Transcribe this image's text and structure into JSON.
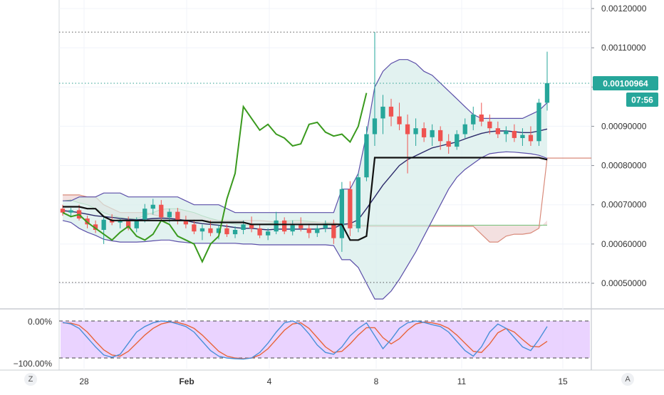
{
  "corner_buttons": {
    "left": "Z",
    "right": "A"
  },
  "colors": {
    "up": "#26a69a",
    "down": "#ef5350",
    "bb": "#5b4ea8",
    "bb_fill": "#d6ece9",
    "lagging": "#3a9a1e",
    "baseline": "#111111",
    "span_red": "#d98a7a",
    "osc_bg": "#e5c8ff",
    "osc_k": "#4a90d9",
    "osc_d": "#e8643a",
    "last_price_bg": "#26a69a",
    "dotted": "#2a9d8f"
  },
  "chart_data": [
    {
      "type": "candlestick",
      "title": "",
      "y_ticks": [
        "0.00120000",
        "0.00110000",
        "0.00100000",
        "0.00090000",
        "0.00080000",
        "0.00070000",
        "0.00060000",
        "0.00050000"
      ],
      "ylim": [
        0.00044,
        0.00127
      ],
      "x_ticks": [
        "28",
        "Feb",
        "4",
        "8",
        "11",
        "15"
      ],
      "horizontal_levels": [
        0.00114,
        0.0010096,
        0.000502
      ],
      "last_price_label": "0.00100964",
      "countdown_label": "07:56",
      "baseline_level_right": 0.000819,
      "candles_ohlc": [
        [
          0.00069,
          0.0007,
          0.000672,
          0.00068
        ],
        [
          0.00068,
          0.000692,
          0.000668,
          0.000686
        ],
        [
          0.000686,
          0.0007,
          0.00066,
          0.000665
        ],
        [
          0.000665,
          0.000672,
          0.00064,
          0.00065
        ],
        [
          0.00065,
          0.00066,
          0.000628,
          0.000636
        ],
        [
          0.000636,
          0.000668,
          0.0006,
          0.000662
        ],
        [
          0.000662,
          0.000676,
          0.000648,
          0.000655
        ],
        [
          0.000655,
          0.000665,
          0.00064,
          0.000658
        ],
        [
          0.000658,
          0.00067,
          0.000635,
          0.00064
        ],
        [
          0.00064,
          0.000668,
          0.00063,
          0.000662
        ],
        [
          0.000662,
          0.000702,
          0.000655,
          0.00069
        ],
        [
          0.00069,
          0.000715,
          0.000675,
          0.0007
        ],
        [
          0.0007,
          0.000712,
          0.00066,
          0.000668
        ],
        [
          0.000668,
          0.00069,
          0.000655,
          0.000682
        ],
        [
          0.000682,
          0.000692,
          0.00065,
          0.000658
        ],
        [
          0.000658,
          0.000672,
          0.00064,
          0.00065
        ],
        [
          0.00065,
          0.000662,
          0.000625,
          0.000632
        ],
        [
          0.000632,
          0.00065,
          0.00061,
          0.00064
        ],
        [
          0.00064,
          0.00066,
          0.00062,
          0.000628
        ],
        [
          0.000628,
          0.000648,
          0.000612,
          0.00064
        ],
        [
          0.00064,
          0.00065,
          0.000618,
          0.000625
        ],
        [
          0.000625,
          0.000645,
          0.000615,
          0.000636
        ],
        [
          0.000636,
          0.00066,
          0.000625,
          0.00065
        ],
        [
          0.00065,
          0.00067,
          0.00063,
          0.00064
        ],
        [
          0.00064,
          0.00065,
          0.000615,
          0.000622
        ],
        [
          0.000622,
          0.00064,
          0.00061,
          0.000632
        ],
        [
          0.000632,
          0.000682,
          0.000625,
          0.00066
        ],
        [
          0.00066,
          0.000668,
          0.000625,
          0.000632
        ],
        [
          0.000632,
          0.00066,
          0.000622,
          0.000648
        ],
        [
          0.000648,
          0.000668,
          0.000632,
          0.00064
        ],
        [
          0.00064,
          0.000652,
          0.000615,
          0.000628
        ],
        [
          0.000628,
          0.000648,
          0.000618,
          0.00064
        ],
        [
          0.00064,
          0.00066,
          0.00063,
          0.000652
        ],
        [
          0.000652,
          0.000662,
          0.0006,
          0.000615
        ],
        [
          0.000615,
          0.000758,
          0.00058,
          0.00074
        ],
        [
          0.00074,
          0.00076,
          0.00062,
          0.00064
        ],
        [
          0.00064,
          0.00078,
          0.00063,
          0.00077
        ],
        [
          0.00077,
          0.0009,
          0.00076,
          0.00088
        ],
        [
          0.00088,
          0.00114,
          0.00085,
          0.00092
        ],
        [
          0.00092,
          0.00098,
          0.00088,
          0.00095
        ],
        [
          0.00095,
          0.00097,
          0.0009,
          0.000925
        ],
        [
          0.000925,
          0.00096,
          0.00089,
          0.000905
        ],
        [
          0.000905,
          0.00093,
          0.00078,
          0.00088
        ],
        [
          0.00088,
          0.00092,
          0.00085,
          0.000895
        ],
        [
          0.000895,
          0.00091,
          0.00086,
          0.000872
        ],
        [
          0.000872,
          0.000905,
          0.00085,
          0.00089
        ],
        [
          0.00089,
          0.0009,
          0.00084,
          0.000862
        ],
        [
          0.000862,
          0.00088,
          0.00083,
          0.000848
        ],
        [
          0.000848,
          0.00089,
          0.00084,
          0.00088
        ],
        [
          0.00088,
          0.00092,
          0.00087,
          0.000905
        ],
        [
          0.000905,
          0.00095,
          0.00089,
          0.00093
        ],
        [
          0.00093,
          0.00096,
          0.0009,
          0.000912
        ],
        [
          0.000912,
          0.00093,
          0.00088,
          0.000895
        ],
        [
          0.000895,
          0.000912,
          0.00087,
          0.00088
        ],
        [
          0.00088,
          0.0009,
          0.00086,
          0.000888
        ],
        [
          0.000888,
          0.000905,
          0.00086,
          0.00087
        ],
        [
          0.00087,
          0.000895,
          0.00085,
          0.000878
        ],
        [
          0.000878,
          0.0009,
          0.00085,
          0.000862
        ],
        [
          0.000862,
          0.00097,
          0.00085,
          0.00096
        ],
        [
          0.00096,
          0.00109,
          0.00094,
          0.00101
        ]
      ],
      "bollinger_upper": [
        0.00071,
        0.00071,
        0.00072,
        0.00072,
        0.00072,
        0.00073,
        0.00073,
        0.00073,
        0.00072,
        0.00072,
        0.00072,
        0.00072,
        0.00072,
        0.00072,
        0.00072,
        0.00071,
        0.0007,
        0.0007,
        0.0007,
        0.0007,
        0.00069,
        0.00068,
        0.00068,
        0.00068,
        0.00068,
        0.00068,
        0.00068,
        0.00068,
        0.00068,
        0.00068,
        0.00068,
        0.00068,
        0.00068,
        0.00068,
        0.00074,
        0.00074,
        0.00078,
        0.00088,
        0.001,
        0.00104,
        0.00106,
        0.00107,
        0.00107,
        0.00106,
        0.00104,
        0.00103,
        0.00101,
        0.00099,
        0.00097,
        0.00095,
        0.00093,
        0.00092,
        0.00092,
        0.00092,
        0.00092,
        0.00092,
        0.00092,
        0.00093,
        0.00094,
        0.00096
      ],
      "bollinger_middle": [
        0.000685,
        0.000683,
        0.00068,
        0.000676,
        0.000672,
        0.00067,
        0.000668,
        0.000665,
        0.000663,
        0.000662,
        0.000663,
        0.000665,
        0.000666,
        0.000665,
        0.000663,
        0.00066,
        0.000655,
        0.000652,
        0.00065,
        0.000648,
        0.000645,
        0.000642,
        0.00064,
        0.00064,
        0.000638,
        0.000636,
        0.000638,
        0.000638,
        0.000638,
        0.000638,
        0.000638,
        0.000638,
        0.00064,
        0.00064,
        0.00065,
        0.000652,
        0.000662,
        0.00069,
        0.00072,
        0.00075,
        0.000775,
        0.0008,
        0.000815,
        0.000825,
        0.000835,
        0.000845,
        0.00085,
        0.000855,
        0.00086,
        0.000868,
        0.000875,
        0.000882,
        0.000886,
        0.000888,
        0.000888,
        0.000886,
        0.000884,
        0.000884,
        0.000888,
        0.000893
      ],
      "bollinger_lower": [
        0.00066,
        0.000655,
        0.00064,
        0.00063,
        0.000622,
        0.000612,
        0.000608,
        0.000605,
        0.000605,
        0.000605,
        0.000606,
        0.000608,
        0.00061,
        0.00061,
        0.000606,
        0.000604,
        0.000602,
        0.000602,
        0.000602,
        0.000602,
        0.000602,
        0.000602,
        0.0006,
        0.0006,
        0.000598,
        0.000598,
        0.000598,
        0.000598,
        0.000598,
        0.000598,
        0.000598,
        0.000598,
        0.000598,
        0.000596,
        0.00056,
        0.00056,
        0.00054,
        0.0005,
        0.00046,
        0.00046,
        0.00048,
        0.00051,
        0.000545,
        0.00058,
        0.00062,
        0.00066,
        0.0007,
        0.00074,
        0.00077,
        0.00079,
        0.000805,
        0.00082,
        0.00083,
        0.000833,
        0.000835,
        0.000834,
        0.000832,
        0.00083,
        0.000826,
        0.000818
      ],
      "lagging_span": [
        0.00068,
        0.00067,
        0.000675,
        0.000655,
        0.00064,
        0.000625,
        0.00061,
        0.00063,
        0.000645,
        0.00062,
        0.00061,
        0.000625,
        0.00066,
        0.00065,
        0.00062,
        0.00061,
        0.0006,
        0.000555,
        0.0006,
        0.00062,
        0.000715,
        0.00078,
        0.00095,
        0.00092,
        0.00089,
        0.000905,
        0.00088,
        0.00087,
        0.00085,
        0.000855,
        0.000905,
        0.00091,
        0.000885,
        0.000875,
        0.00088,
        0.00086,
        0.0009,
        0.000985,
        null,
        null,
        null,
        null,
        null,
        null,
        null,
        null,
        null,
        null,
        null,
        null,
        null,
        null,
        null,
        null,
        null,
        null,
        null,
        null,
        null,
        null
      ],
      "baseline": [
        0.000695,
        0.000695,
        0.000695,
        0.00069,
        0.00069,
        0.00067,
        0.00066,
        0.00066,
        0.00066,
        0.00066,
        0.00066,
        0.00066,
        0.00066,
        0.00066,
        0.00066,
        0.00066,
        0.00066,
        0.00066,
        0.000655,
        0.000655,
        0.000655,
        0.000655,
        0.000655,
        0.00065,
        0.00065,
        0.00065,
        0.00065,
        0.00065,
        0.00065,
        0.00065,
        0.00065,
        0.00065,
        0.00065,
        0.00065,
        0.00065,
        0.00061,
        0.00061,
        0.00062,
        0.00082,
        0.00082,
        0.00082,
        0.00082,
        0.00082,
        0.00082,
        0.00082,
        0.00082,
        0.00082,
        0.00082,
        0.00082,
        0.00082,
        0.00082,
        0.00082,
        0.00082,
        0.00082,
        0.00082,
        0.00082,
        0.00082,
        0.00082,
        0.00082,
        0.000815
      ],
      "cloud_span_a": [
        0.00071,
        0.000712,
        0.000705,
        0.0007,
        0.00069,
        0.00068,
        0.000672,
        0.000668,
        0.000665,
        0.000665,
        0.000672,
        0.00068,
        0.000688,
        0.00069,
        0.00069,
        0.000685,
        0.00068,
        0.000672,
        0.000665,
        0.00066,
        0.000655,
        0.00065,
        0.000648,
        0.000648,
        0.00065,
        0.000652,
        0.000655,
        0.000658,
        0.00066,
        0.00066,
        0.000658,
        0.000656,
        0.000654,
        0.00065,
        0.000648,
        0.000648,
        0.000648,
        0.000648,
        0.000648,
        0.000648,
        0.000648,
        0.000648,
        0.000648,
        0.000648,
        0.000648,
        0.000648,
        0.000648,
        0.000648,
        0.000648,
        0.000648,
        0.000648,
        0.000648,
        0.000648,
        0.000648,
        0.000648,
        0.000648,
        0.000648,
        0.000648,
        0.000648,
        0.000648
      ],
      "cloud_span_b": [
        0.000725,
        0.000725,
        0.000725,
        0.00072,
        0.00072,
        0.0007,
        0.00069,
        0.00068,
        0.00068,
        0.00068,
        0.00068,
        0.000675,
        0.00067,
        0.000665,
        0.00066,
        0.00066,
        0.00066,
        0.00066,
        0.00066,
        0.00066,
        0.00066,
        0.00066,
        0.00066,
        0.00066,
        0.00066,
        0.000658,
        0.000656,
        0.000655,
        0.000655,
        0.000655,
        0.000655,
        0.000655,
        0.000655,
        0.000655,
        0.00065,
        0.000648,
        0.000645,
        0.000645,
        0.000645,
        0.000645,
        0.000645,
        0.000645,
        0.000645,
        0.000645,
        0.000645,
        0.000645,
        0.000645,
        0.000645,
        0.000645,
        0.000645,
        0.000645,
        0.000625,
        0.000605,
        0.000605,
        0.00062,
        0.000625,
        0.000625,
        0.000628,
        0.00064,
        0.00066
      ]
    },
    {
      "type": "line",
      "title": "",
      "y_ticks": [
        "0.00%",
        "−100.00%"
      ],
      "ylim": [
        -110,
        10
      ],
      "upper_band": 0,
      "lower_band": -100,
      "k_series": [
        -4,
        -8,
        -20,
        -45,
        -70,
        -92,
        -98,
        -90,
        -60,
        -30,
        -15,
        -5,
        0,
        -2,
        -8,
        -15,
        -30,
        -55,
        -80,
        -95,
        -100,
        -102,
        -103,
        -100,
        -85,
        -60,
        -30,
        -5,
        0,
        -10,
        -35,
        -65,
        -85,
        -90,
        -70,
        -40,
        -20,
        -5,
        -40,
        -75,
        -50,
        -20,
        -5,
        0,
        -4,
        -10,
        -15,
        -30,
        -55,
        -80,
        -95,
        -70,
        -30,
        -8,
        -20,
        -45,
        -70,
        -80,
        -50,
        -15
      ],
      "d_series": [
        -5,
        -6,
        -12,
        -30,
        -55,
        -78,
        -92,
        -95,
        -82,
        -60,
        -38,
        -20,
        -8,
        -3,
        -4,
        -10,
        -20,
        -38,
        -60,
        -82,
        -95,
        -100,
        -102,
        -100,
        -92,
        -75,
        -50,
        -25,
        -8,
        -5,
        -20,
        -45,
        -70,
        -85,
        -82,
        -62,
        -38,
        -18,
        -18,
        -45,
        -62,
        -48,
        -25,
        -8,
        -3,
        -5,
        -10,
        -20,
        -38,
        -60,
        -82,
        -85,
        -62,
        -32,
        -20,
        -30,
        -50,
        -68,
        -70,
        -55
      ]
    }
  ]
}
